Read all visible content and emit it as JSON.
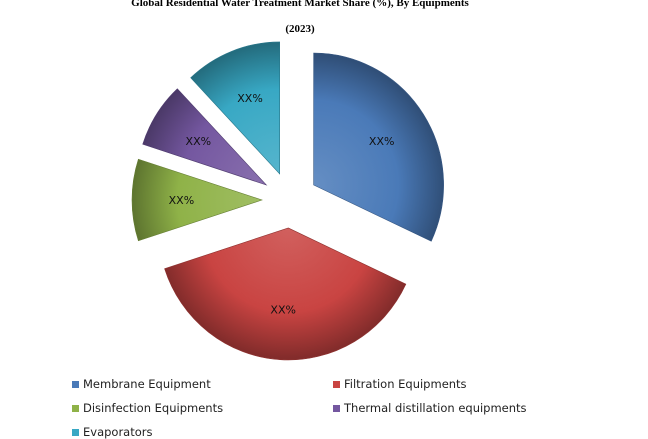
{
  "chart_data": {
    "type": "pie",
    "title": "Global Residential Water Treatment Market Share (%), By Equipments",
    "subtitle": "(2023)",
    "categories": [
      "Membrane Equipment",
      "Filtration Equipments",
      "Disinfection Equipments",
      "Thermal distillation equipments",
      "Evaporators"
    ],
    "values": [
      32,
      38,
      10,
      8,
      12
    ],
    "data_labels": [
      "XX%",
      "XX%",
      "XX%",
      "XX%",
      "XX%"
    ],
    "colors": [
      "#4a7ab8",
      "#c94442",
      "#8fb248",
      "#7457a0",
      "#38a8c4"
    ],
    "exploded": true,
    "style": "3d-shaded",
    "legend_position": "bottom"
  }
}
